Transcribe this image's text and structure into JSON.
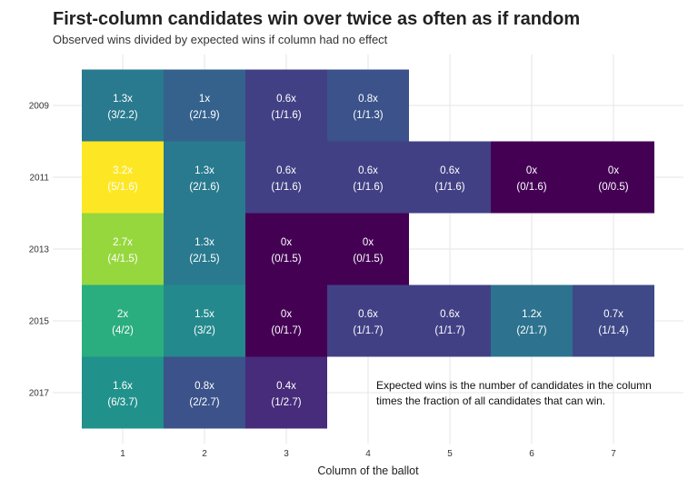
{
  "chart_data": {
    "type": "heatmap",
    "title": "First-column candidates win over twice as often as if random",
    "subtitle": "Observed wins divided by expected wins if column had no effect",
    "xlabel": "Column of the ballot",
    "ylabel": "",
    "x": [
      1,
      2,
      3,
      4,
      5,
      6,
      7
    ],
    "y": [
      2009,
      2011,
      2013,
      2015,
      2017
    ],
    "annotation": [
      "Expected wins is the number of candidates in the column",
      "times the fraction of all candidates that can win."
    ],
    "color_scale": {
      "name": "viridis",
      "min": 0,
      "max": 3.2
    },
    "cells": [
      {
        "year": 2009,
        "column": 1,
        "ratio": 1.3,
        "label": "1.3x",
        "detail": "(3/2.2)"
      },
      {
        "year": 2009,
        "column": 2,
        "ratio": 1.0,
        "label": "1x",
        "detail": "(2/1.9)"
      },
      {
        "year": 2009,
        "column": 3,
        "ratio": 0.6,
        "label": "0.6x",
        "detail": "(1/1.6)"
      },
      {
        "year": 2009,
        "column": 4,
        "ratio": 0.8,
        "label": "0.8x",
        "detail": "(1/1.3)"
      },
      {
        "year": 2011,
        "column": 1,
        "ratio": 3.2,
        "label": "3.2x",
        "detail": "(5/1.6)"
      },
      {
        "year": 2011,
        "column": 2,
        "ratio": 1.3,
        "label": "1.3x",
        "detail": "(2/1.6)"
      },
      {
        "year": 2011,
        "column": 3,
        "ratio": 0.6,
        "label": "0.6x",
        "detail": "(1/1.6)"
      },
      {
        "year": 2011,
        "column": 4,
        "ratio": 0.6,
        "label": "0.6x",
        "detail": "(1/1.6)"
      },
      {
        "year": 2011,
        "column": 5,
        "ratio": 0.6,
        "label": "0.6x",
        "detail": "(1/1.6)"
      },
      {
        "year": 2011,
        "column": 6,
        "ratio": 0,
        "label": "0x",
        "detail": "(0/1.6)"
      },
      {
        "year": 2011,
        "column": 7,
        "ratio": 0,
        "label": "0x",
        "detail": "(0/0.5)"
      },
      {
        "year": 2013,
        "column": 1,
        "ratio": 2.7,
        "label": "2.7x",
        "detail": "(4/1.5)"
      },
      {
        "year": 2013,
        "column": 2,
        "ratio": 1.3,
        "label": "1.3x",
        "detail": "(2/1.5)"
      },
      {
        "year": 2013,
        "column": 3,
        "ratio": 0,
        "label": "0x",
        "detail": "(0/1.5)"
      },
      {
        "year": 2013,
        "column": 4,
        "ratio": 0,
        "label": "0x",
        "detail": "(0/1.5)"
      },
      {
        "year": 2015,
        "column": 1,
        "ratio": 2.0,
        "label": "2x",
        "detail": "(4/2)"
      },
      {
        "year": 2015,
        "column": 2,
        "ratio": 1.5,
        "label": "1.5x",
        "detail": "(3/2)"
      },
      {
        "year": 2015,
        "column": 3,
        "ratio": 0,
        "label": "0x",
        "detail": "(0/1.7)"
      },
      {
        "year": 2015,
        "column": 4,
        "ratio": 0.6,
        "label": "0.6x",
        "detail": "(1/1.7)"
      },
      {
        "year": 2015,
        "column": 5,
        "ratio": 0.6,
        "label": "0.6x",
        "detail": "(1/1.7)"
      },
      {
        "year": 2015,
        "column": 6,
        "ratio": 1.2,
        "label": "1.2x",
        "detail": "(2/1.7)"
      },
      {
        "year": 2015,
        "column": 7,
        "ratio": 0.7,
        "label": "0.7x",
        "detail": "(1/1.4)"
      },
      {
        "year": 2017,
        "column": 1,
        "ratio": 1.6,
        "label": "1.6x",
        "detail": "(6/3.7)"
      },
      {
        "year": 2017,
        "column": 2,
        "ratio": 0.8,
        "label": "0.8x",
        "detail": "(2/2.7)"
      },
      {
        "year": 2017,
        "column": 3,
        "ratio": 0.4,
        "label": "0.4x",
        "detail": "(1/2.7)"
      }
    ],
    "grid": true,
    "legend": "none"
  }
}
